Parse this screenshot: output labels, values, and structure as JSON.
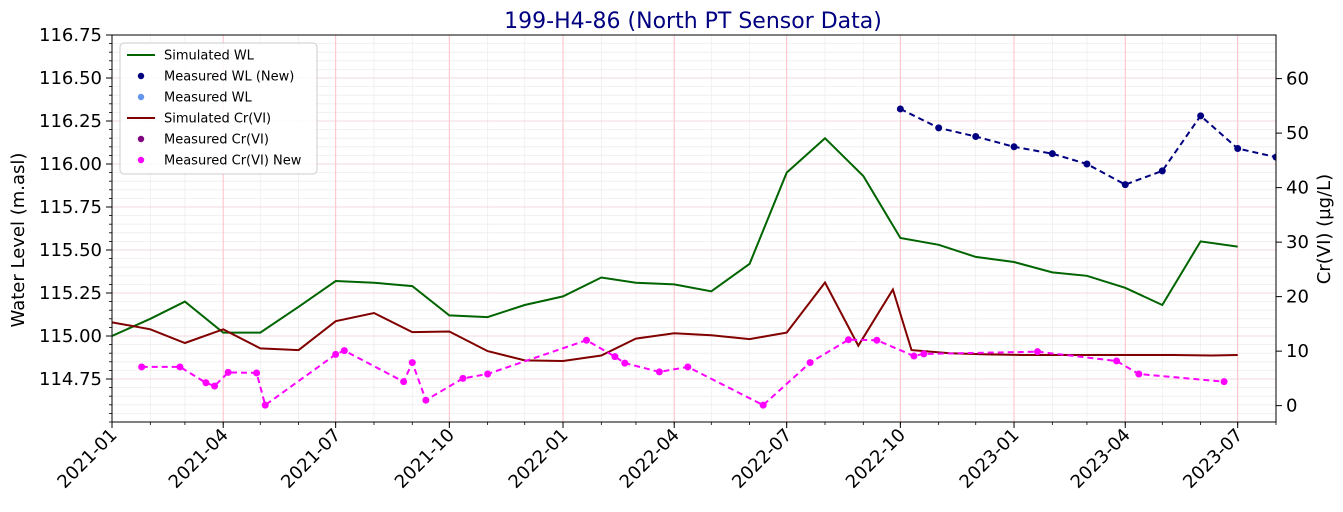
{
  "chart_data": {
    "type": "line",
    "title": "199-H4-86 (North PT Sensor Data)",
    "ylabel": "Water Level (m.asl)",
    "y2label": "Cr(VI) (µg/L)",
    "xlim": [
      "2021-01-01",
      "2023-08-01"
    ],
    "ylim": [
      114.5,
      116.75
    ],
    "y2lim": [
      -3,
      68
    ],
    "x_ticks": [
      "2021-01-01",
      "2021-04-01",
      "2021-07-01",
      "2021-10-01",
      "2022-01-01",
      "2022-04-01",
      "2022-07-01",
      "2022-10-01",
      "2023-01-01",
      "2023-04-01",
      "2023-07-01"
    ],
    "x_tick_labels": [
      "2021-01",
      "2021-04",
      "2021-07",
      "2021-10",
      "2022-01",
      "2022-04",
      "2022-07",
      "2022-10",
      "2023-01",
      "2023-04",
      "2023-07"
    ],
    "y_ticks": [
      114.75,
      115.0,
      115.25,
      115.5,
      115.75,
      116.0,
      116.25,
      116.5,
      116.75
    ],
    "y_tick_labels": [
      "114.75",
      "115.00",
      "115.25",
      "115.50",
      "115.75",
      "116.00",
      "116.25",
      "116.50",
      "116.75"
    ],
    "y2_ticks": [
      0,
      10,
      20,
      30,
      40,
      50,
      60
    ],
    "y2_tick_labels": [
      "0",
      "10",
      "20",
      "30",
      "40",
      "50",
      "60"
    ],
    "grid": true,
    "legend_position": "top-left",
    "legend": [
      {
        "label": "Simulated WL",
        "kind": "line",
        "color": "#006400"
      },
      {
        "label": "Measured WL (New)",
        "kind": "marker",
        "color": "#000080"
      },
      {
        "label": "Measured WL",
        "kind": "marker",
        "color": "#6495ED"
      },
      {
        "label": "Simulated Cr(VI)",
        "kind": "line",
        "color": "#800000"
      },
      {
        "label": "Measured Cr(VI)",
        "kind": "marker",
        "color": "#800080"
      },
      {
        "label": "Measured Cr(VI) New",
        "kind": "marker",
        "color": "#FF00FF"
      }
    ],
    "series": [
      {
        "name": "Simulated WL",
        "axis": "left",
        "style": "line",
        "color": "#006400",
        "x": [
          "2021-01-01",
          "2021-02-01",
          "2021-03-01",
          "2021-04-01",
          "2021-05-01",
          "2021-06-01",
          "2021-07-01",
          "2021-08-01",
          "2021-09-01",
          "2021-10-01",
          "2021-11-01",
          "2021-12-01",
          "2022-01-01",
          "2022-02-01",
          "2022-03-01",
          "2022-04-01",
          "2022-05-01",
          "2022-06-01",
          "2022-07-01",
          "2022-08-01",
          "2022-09-01",
          "2022-10-01",
          "2022-11-01",
          "2022-12-01",
          "2023-01-01",
          "2023-02-01",
          "2023-03-01",
          "2023-04-01",
          "2023-05-01",
          "2023-06-01",
          "2023-07-01"
        ],
        "y": [
          115.0,
          115.1,
          115.2,
          115.02,
          115.02,
          115.17,
          115.32,
          115.31,
          115.29,
          115.12,
          115.11,
          115.18,
          115.23,
          115.34,
          115.31,
          115.3,
          115.26,
          115.42,
          115.95,
          116.15,
          115.93,
          115.57,
          115.53,
          115.46,
          115.43,
          115.37,
          115.35,
          115.28,
          115.18,
          115.55,
          115.52
        ]
      },
      {
        "name": "Measured WL (New)",
        "axis": "left",
        "style": "dashed-markers",
        "color": "#000080",
        "x": [
          "2022-10-01",
          "2022-11-01",
          "2022-12-01",
          "2023-01-01",
          "2023-02-01",
          "2023-03-01",
          "2023-04-01",
          "2023-05-01",
          "2023-06-01",
          "2023-07-01",
          "2023-08-01"
        ],
        "y": [
          116.32,
          116.21,
          116.16,
          116.1,
          116.06,
          116.0,
          115.88,
          115.96,
          116.28,
          116.09,
          116.04
        ]
      },
      {
        "name": "Simulated Cr(VI)",
        "axis": "right",
        "style": "line",
        "color": "#800000",
        "x": [
          "2021-01-01",
          "2021-02-01",
          "2021-03-01",
          "2021-04-01",
          "2021-05-01",
          "2021-06-01",
          "2021-07-01",
          "2021-08-01",
          "2021-09-01",
          "2021-10-01",
          "2021-11-01",
          "2021-12-01",
          "2022-01-01",
          "2022-02-01",
          "2022-03-01",
          "2022-04-01",
          "2022-05-01",
          "2022-06-01",
          "2022-07-01",
          "2022-08-01",
          "2022-08-28",
          "2022-09-25",
          "2022-10-10",
          "2022-11-10",
          "2022-12-10",
          "2023-01-10",
          "2023-02-10",
          "2023-03-10",
          "2023-04-10",
          "2023-05-10",
          "2023-06-10",
          "2023-07-01"
        ],
        "y": [
          15.3,
          14.0,
          11.5,
          14.0,
          10.5,
          10.2,
          15.5,
          17.0,
          13.5,
          13.6,
          10.0,
          8.3,
          8.2,
          9.2,
          12.3,
          13.3,
          12.9,
          12.2,
          13.4,
          22.6,
          11.0,
          21.3,
          10.2,
          9.6,
          9.4,
          9.3,
          9.3,
          9.3,
          9.3,
          9.3,
          9.2,
          9.3
        ]
      },
      {
        "name": "Measured Cr(VI) New",
        "axis": "right",
        "style": "dashed-markers",
        "color": "#FF00FF",
        "x": [
          "2021-01-25",
          "2021-02-25",
          "2021-03-18",
          "2021-03-25",
          "2021-04-05",
          "2021-04-28",
          "2021-05-05",
          "2021-07-01",
          "2021-07-08",
          "2021-08-25",
          "2021-09-01",
          "2021-09-12",
          "2021-10-12",
          "2021-11-01",
          "2022-01-20",
          "2022-02-12",
          "2022-02-20",
          "2022-03-20",
          "2022-04-12",
          "2022-06-12",
          "2022-07-20",
          "2022-08-20",
          "2022-09-12",
          "2022-10-12",
          "2022-10-20",
          "2023-01-20",
          "2023-03-25",
          "2023-04-12",
          "2023-06-20"
        ],
        "y": [
          7.1,
          7.1,
          4.2,
          3.6,
          6.1,
          6.0,
          0.1,
          9.4,
          10.1,
          4.4,
          7.9,
          1.0,
          5.0,
          5.8,
          12.0,
          9.0,
          7.8,
          6.2,
          7.1,
          0.1,
          7.9,
          12.1,
          12.0,
          9.1,
          9.5,
          9.9,
          8.2,
          5.8,
          4.4
        ]
      }
    ]
  }
}
